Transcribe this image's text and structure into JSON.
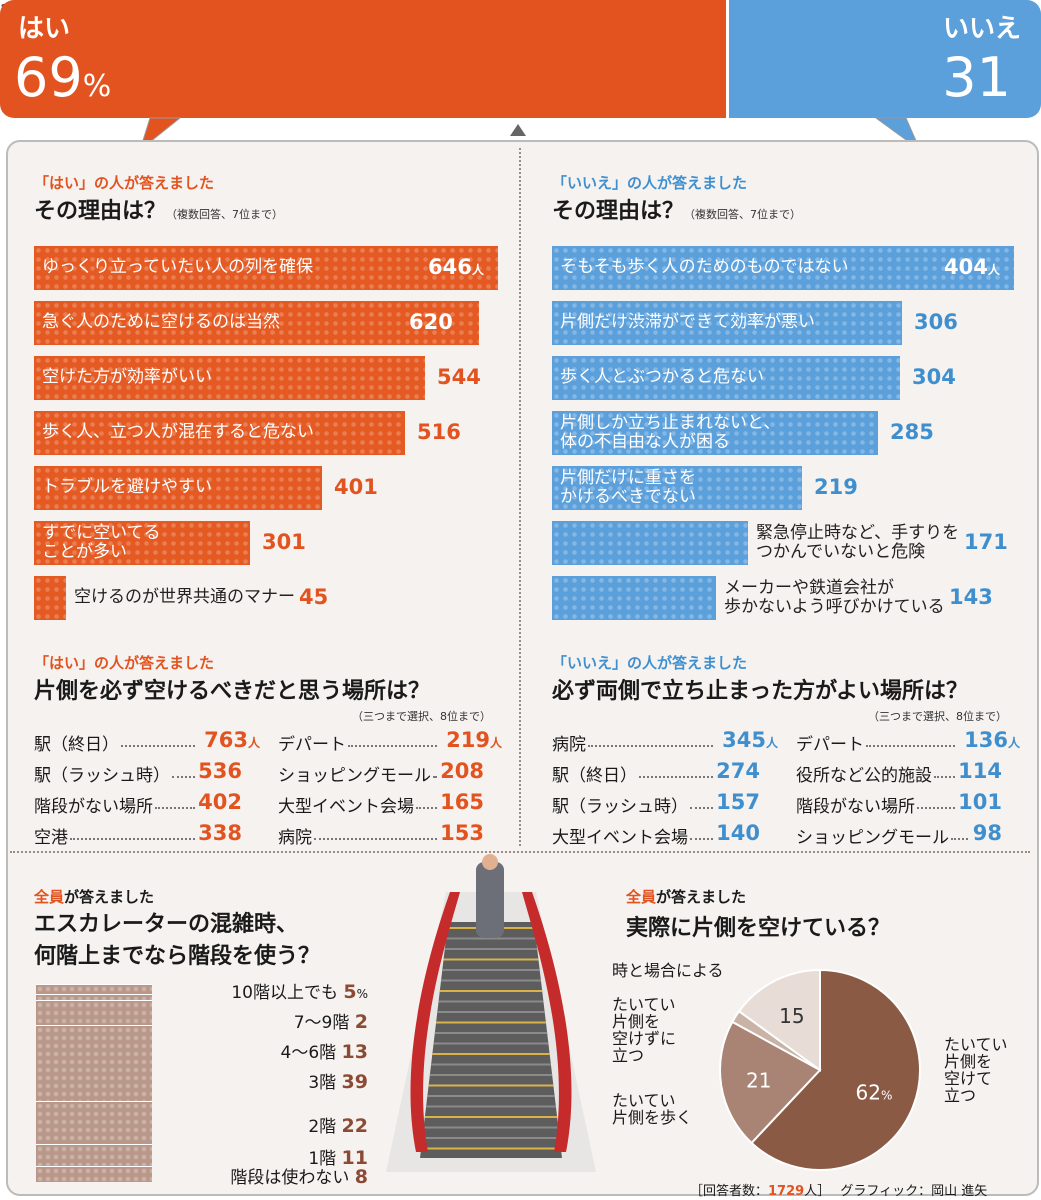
{
  "header": {
    "yes_label": "はい",
    "yes_value": "69",
    "yes_unit": "%",
    "no_label": "いいえ",
    "no_value": "31"
  },
  "colors": {
    "yes": "#e2531f",
    "no": "#3f8fcf",
    "brown": "#8b5a45"
  },
  "left_reasons": {
    "subtitle": "「はい」の人が答えました",
    "title": "その理由は？",
    "note": "（複数回答、7位まで）"
  },
  "right_reasons": {
    "subtitle": "「いいえ」の人が答えました",
    "title": "その理由は？",
    "note": "（複数回答、7位まで）"
  },
  "left_places": {
    "subtitle": "「はい」の人が答えました",
    "title": "片側を必ず空けるべきだと思う場所は？",
    "note": "（三つまで選択、8位まで）"
  },
  "right_places": {
    "subtitle": "「いいえ」の人が答えました",
    "title": "必ず両側で立ち止まった方がよい場所は？",
    "note": "（三つまで選択、8位まで）"
  },
  "stairs_q": {
    "subtitle_em": "全員",
    "subtitle_rest": "が答えました",
    "title_line1": "エスカレーターの混雑時、",
    "title_line2": "何階上までなら階段を使う？"
  },
  "pie_q": {
    "subtitle_em": "全員",
    "subtitle_rest": "が答えました",
    "title": "実際に片側を空けている？"
  },
  "footer": {
    "respondents_label": "［回答者数：",
    "respondents_value": "1729",
    "respondents_unit": "人］",
    "credit": "グラフィック：岡山 進矢"
  },
  "unit_person": "人",
  "chart_data": [
    {
      "type": "bar",
      "id": "yes_reasons",
      "categories": [
        "ゆっくり立っていたい人の列を確保",
        "急ぐ人のために空けるのは当然",
        "空けた方が効率がいい",
        "歩く人、立つ人が混在すると危ない",
        "トラブルを避けやすい",
        "すでに空いてる\nことが多い",
        "空けるのが世界共通のマナー"
      ],
      "values": [
        646,
        620,
        544,
        516,
        401,
        301,
        45
      ]
    },
    {
      "type": "bar",
      "id": "no_reasons",
      "categories": [
        "そもそも歩く人のためのものではない",
        "片側だけ渋滞ができて効率が悪い",
        "歩く人とぶつかると危ない",
        "片側しか立ち止まれないと、\n体の不自由な人が困る",
        "片側だけに重さを\nかけるべきでない",
        "緊急停止時など、手すりを\nつかんでいないと危険",
        "メーカーや鉄道会社が\n歩かないよう呼びかけている"
      ],
      "values": [
        404,
        306,
        304,
        285,
        219,
        171,
        143
      ]
    },
    {
      "type": "table",
      "id": "yes_places",
      "rows": [
        {
          "name": "駅（終日）",
          "value": 763
        },
        {
          "name": "駅（ラッシュ時）",
          "value": 536
        },
        {
          "name": "階段がない場所",
          "value": 402
        },
        {
          "name": "空港",
          "value": 338
        },
        {
          "name": "デパート",
          "value": 219
        },
        {
          "name": "ショッピングモール",
          "value": 208
        },
        {
          "name": "大型イベント会場",
          "value": 165
        },
        {
          "name": "病院",
          "value": 153
        }
      ]
    },
    {
      "type": "table",
      "id": "no_places",
      "rows": [
        {
          "name": "病院",
          "value": 345
        },
        {
          "name": "駅（終日）",
          "value": 274
        },
        {
          "name": "駅（ラッシュ時）",
          "value": 157
        },
        {
          "name": "大型イベント会場",
          "value": 140
        },
        {
          "name": "デパート",
          "value": 136
        },
        {
          "name": "役所など公的施設",
          "value": 114
        },
        {
          "name": "階段がない場所",
          "value": 101
        },
        {
          "name": "ショッピングモール",
          "value": 98
        }
      ]
    },
    {
      "type": "bar",
      "id": "stairs",
      "categories": [
        "10階以上でも",
        "7〜9階",
        "4〜6階",
        "3階",
        "2階",
        "1階",
        "階段は使わない"
      ],
      "values": [
        5,
        2,
        13,
        39,
        22,
        11,
        8
      ],
      "unit": "%"
    },
    {
      "type": "pie",
      "id": "actual",
      "labels": [
        "たいてい\n片側を\n空けて\n立つ",
        "たいてい\n片側を歩く",
        "たいてい\n片側を\n空けずに\n立つ",
        "時と場合による"
      ],
      "values": [
        62,
        21,
        2,
        15
      ],
      "unit": "%"
    }
  ]
}
